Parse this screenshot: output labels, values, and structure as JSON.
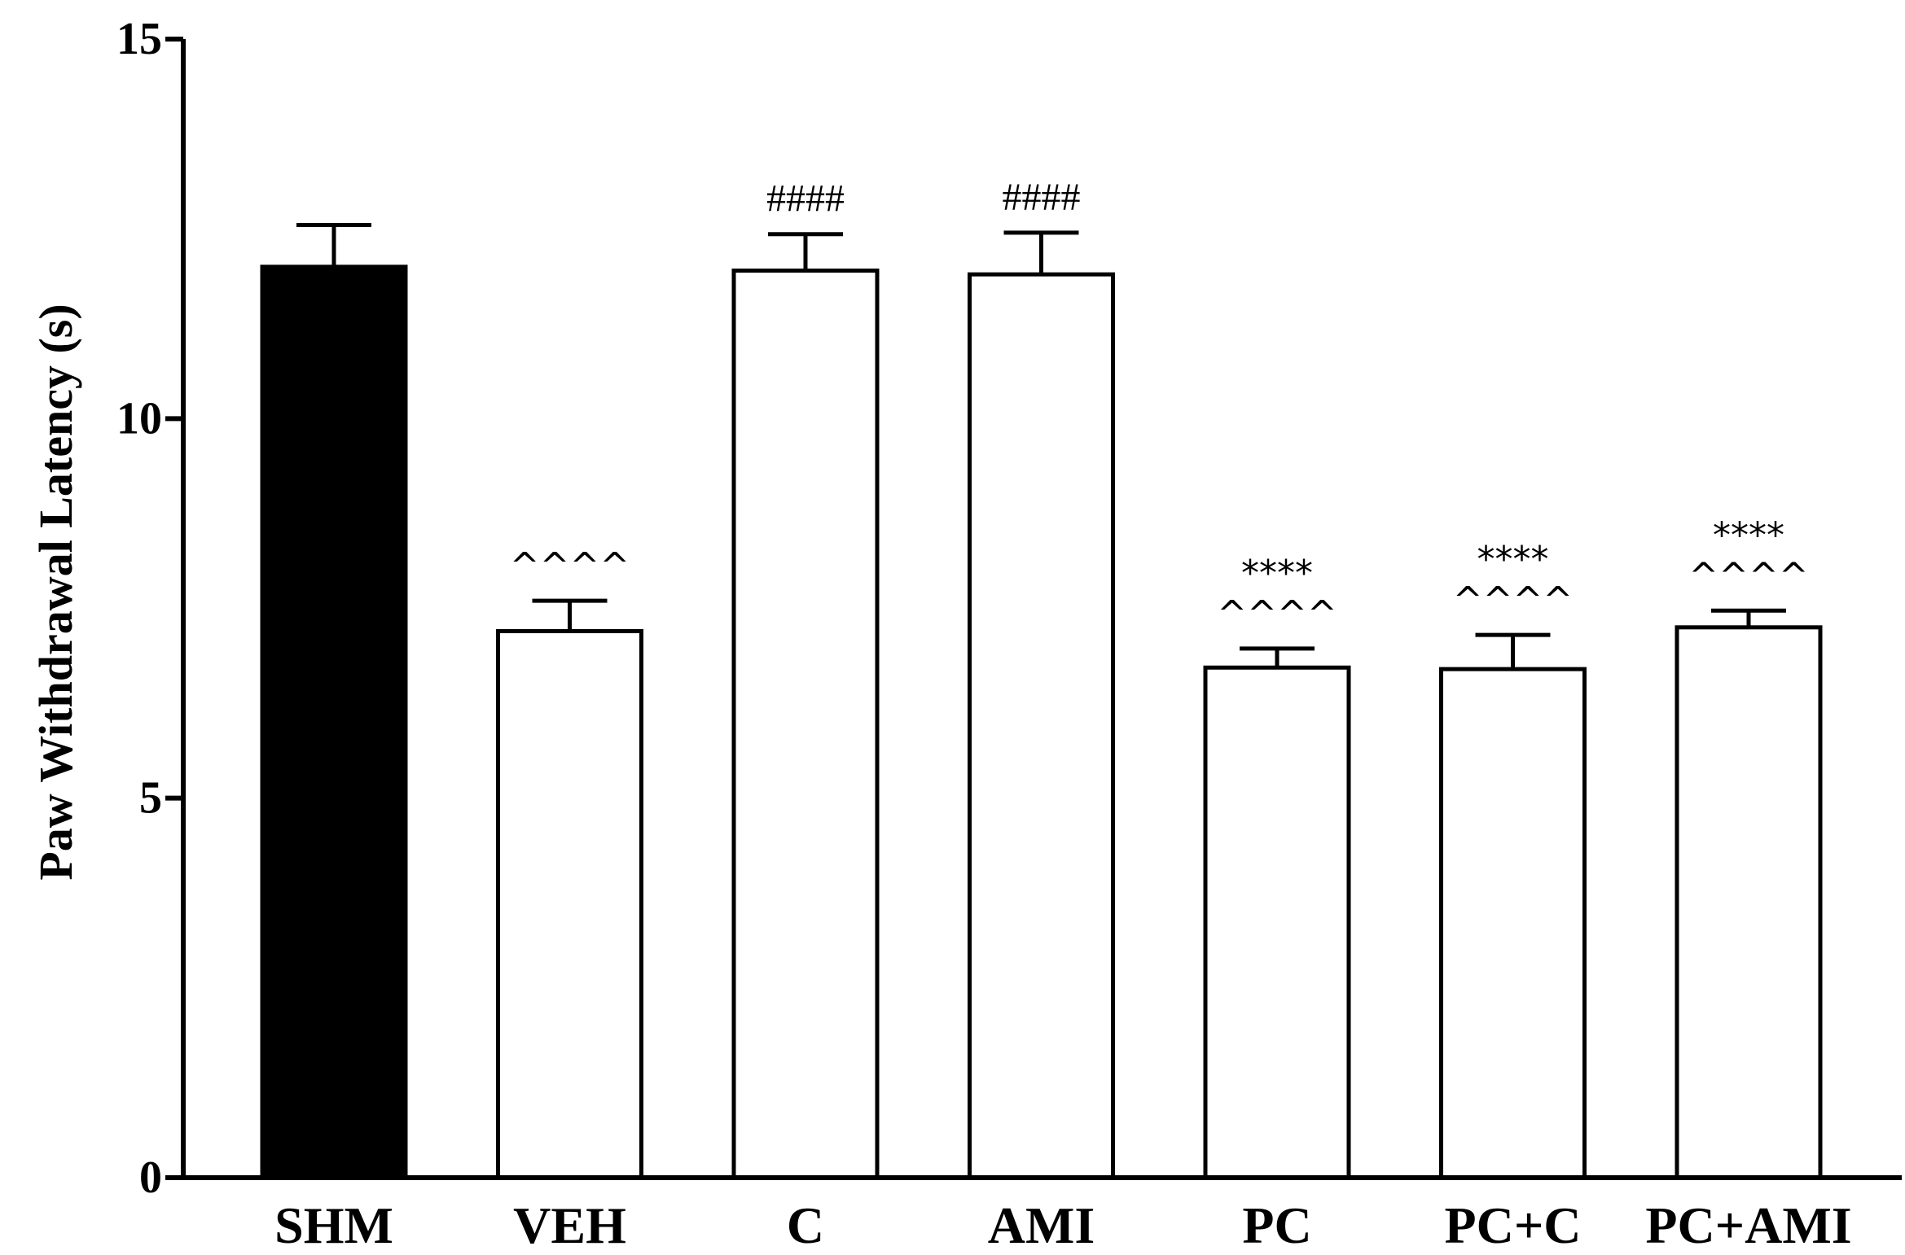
{
  "chart_data": {
    "type": "bar",
    "title": "",
    "xlabel": "",
    "ylabel": "Paw Withdrawal Latency (s)",
    "ylim": [
      0,
      15
    ],
    "yticks": [
      0,
      5,
      10,
      15
    ],
    "grid": false,
    "categories": [
      "SHM",
      "VEH",
      "C",
      "AMI",
      "PC",
      "PC+C",
      "PC+AMI"
    ],
    "values": [
      12.0,
      7.2,
      11.95,
      11.9,
      6.72,
      6.7,
      7.25
    ],
    "errors": [
      0.55,
      0.4,
      0.48,
      0.55,
      0.25,
      0.45,
      0.22
    ],
    "fills": [
      "#000000",
      "#ffffff",
      "#ffffff",
      "#ffffff",
      "#ffffff",
      "#ffffff",
      "#ffffff"
    ],
    "annotations": [
      [],
      [
        "^^^^"
      ],
      [
        "####"
      ],
      [
        "####"
      ],
      [
        "****",
        "^^^^"
      ],
      [
        "****",
        "^^^^"
      ],
      [
        "****",
        "^^^^"
      ]
    ]
  }
}
